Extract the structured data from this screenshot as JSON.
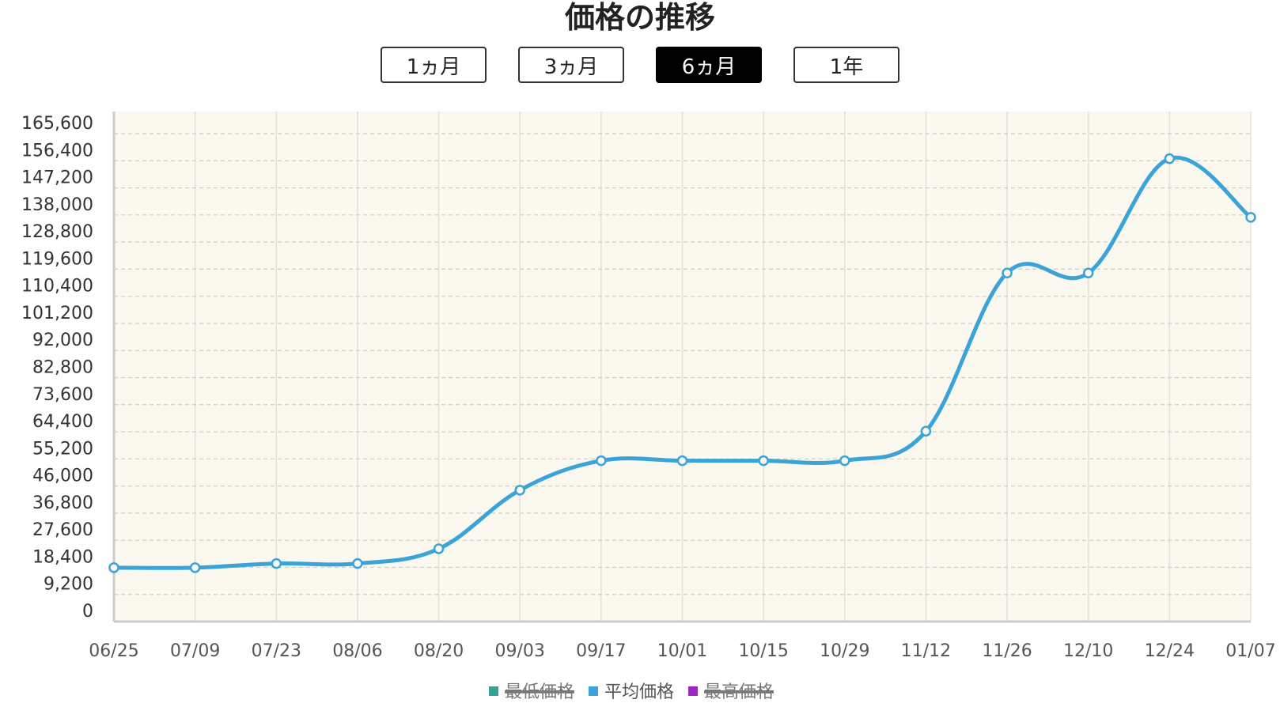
{
  "chart_data": {
    "type": "line",
    "title": "価格の推移",
    "ranges": [
      "1ヵ月",
      "3ヵ月",
      "6ヵ月",
      "1年"
    ],
    "active_range": 2,
    "categories": [
      "06/25",
      "07/09",
      "07/23",
      "08/06",
      "08/20",
      "09/03",
      "09/17",
      "10/01",
      "10/15",
      "10/29",
      "11/12",
      "11/26",
      "12/10",
      "12/24",
      "01/07"
    ],
    "series": [
      {
        "name": "最低価格",
        "color": "#3e9e94",
        "hidden": true,
        "values": [
          null,
          null,
          null,
          null,
          null,
          null,
          null,
          null,
          null,
          null,
          null,
          null,
          null,
          null,
          null
        ]
      },
      {
        "name": "平均価格",
        "color": "#3aa4d8",
        "hidden": false,
        "values": [
          18300,
          18300,
          19700,
          19700,
          24700,
          44600,
          54600,
          54600,
          54600,
          54600,
          64600,
          118300,
          118300,
          157100,
          137200
        ]
      },
      {
        "name": "最高価格",
        "color": "#9b27c4",
        "hidden": true,
        "values": [
          null,
          null,
          null,
          null,
          null,
          null,
          null,
          null,
          null,
          null,
          null,
          null,
          null,
          null,
          null
        ]
      }
    ],
    "ylim": [
      0,
      165600
    ],
    "yticks": [
      {
        "value": 0,
        "label": "0"
      },
      {
        "value": 9200,
        "label": "9,200"
      },
      {
        "value": 18400,
        "label": "18,400"
      },
      {
        "value": 27600,
        "label": "27,600"
      },
      {
        "value": 36800,
        "label": "36,800"
      },
      {
        "value": 46000,
        "label": "46,000"
      },
      {
        "value": 55200,
        "label": "55,200"
      },
      {
        "value": 64400,
        "label": "64,400"
      },
      {
        "value": 73600,
        "label": "73,600"
      },
      {
        "value": 82800,
        "label": "82,800"
      },
      {
        "value": 92000,
        "label": "92,000"
      },
      {
        "value": 101200,
        "label": "101,200"
      },
      {
        "value": 110400,
        "label": "110,400"
      },
      {
        "value": 119600,
        "label": "119,600"
      },
      {
        "value": 128800,
        "label": "128,800"
      },
      {
        "value": 138000,
        "label": "138,000"
      },
      {
        "value": 147200,
        "label": "147,200"
      },
      {
        "value": 156400,
        "label": "156,400"
      },
      {
        "value": 165600,
        "label": "165,600"
      }
    ],
    "grid": true,
    "legend": "bottom"
  }
}
